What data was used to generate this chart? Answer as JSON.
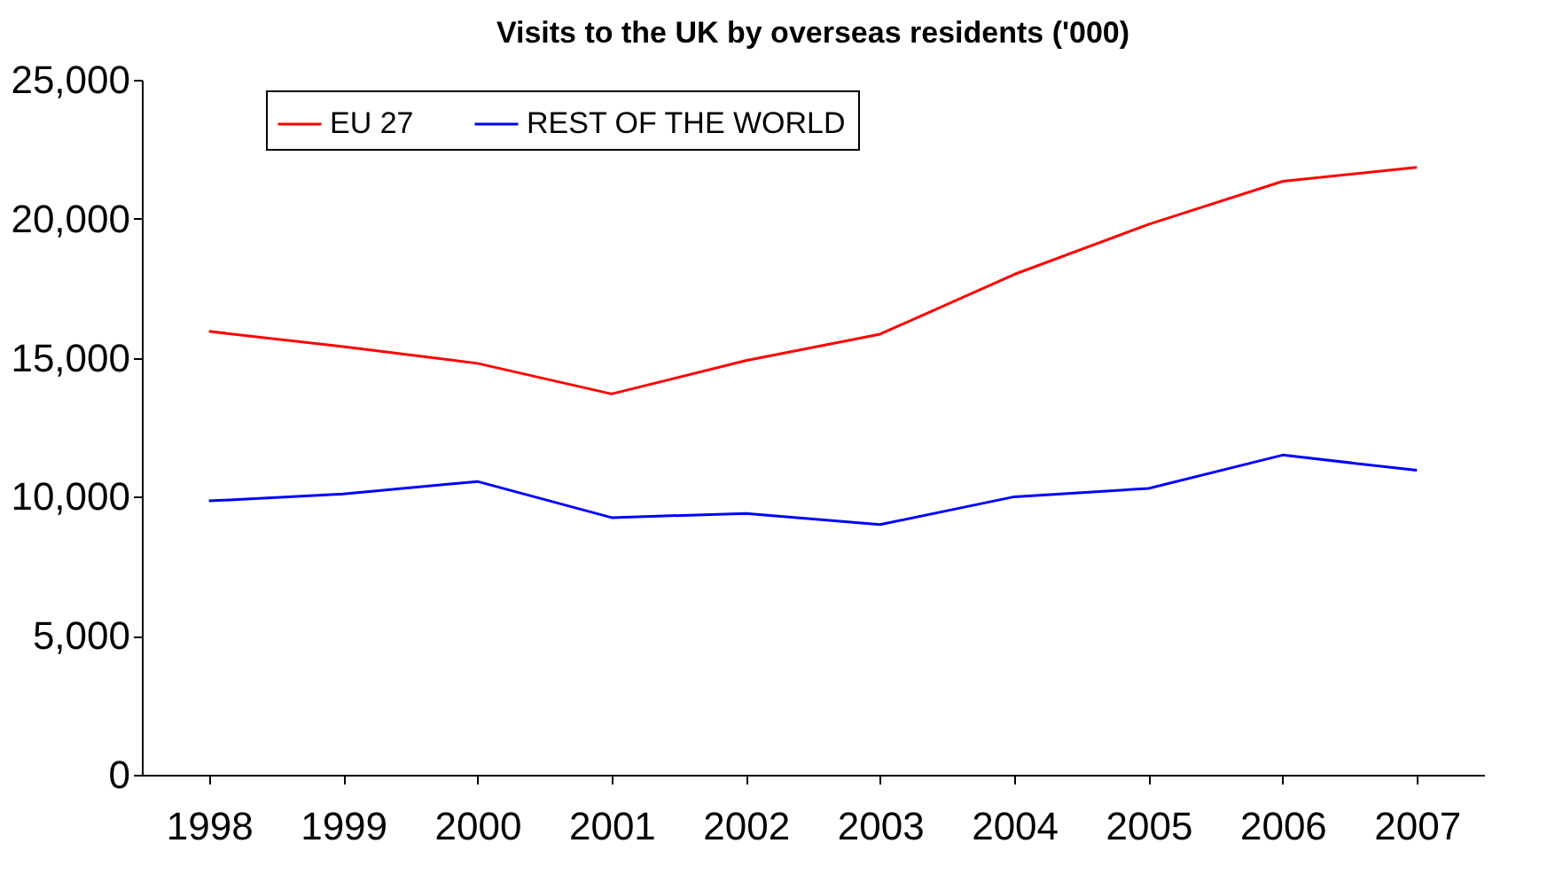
{
  "chart_data": {
    "type": "line",
    "title": "Visits to the UK by overseas residents ('000)",
    "categories": [
      "1998",
      "1999",
      "2000",
      "2001",
      "2002",
      "2003",
      "2004",
      "2005",
      "2006",
      "2007"
    ],
    "series": [
      {
        "name": "EU 27",
        "color": "#ff0000",
        "values": [
          15950,
          15400,
          14800,
          13700,
          14900,
          15850,
          18000,
          19800,
          21350,
          21850
        ]
      },
      {
        "name": "REST OF THE WORLD",
        "color": "#0000ff",
        "values": [
          9850,
          10100,
          10550,
          9250,
          9400,
          9000,
          10000,
          10300,
          11500,
          10950
        ]
      }
    ],
    "ylim": [
      0,
      25000
    ],
    "yticks": [
      {
        "value": 0,
        "label": "0"
      },
      {
        "value": 5000,
        "label": "5,000"
      },
      {
        "value": 10000,
        "label": "10,000"
      },
      {
        "value": 15000,
        "label": "15,000"
      },
      {
        "value": 20000,
        "label": "20,000"
      },
      {
        "value": 25000,
        "label": "25,000"
      }
    ],
    "grid": false,
    "legend": "top left"
  }
}
